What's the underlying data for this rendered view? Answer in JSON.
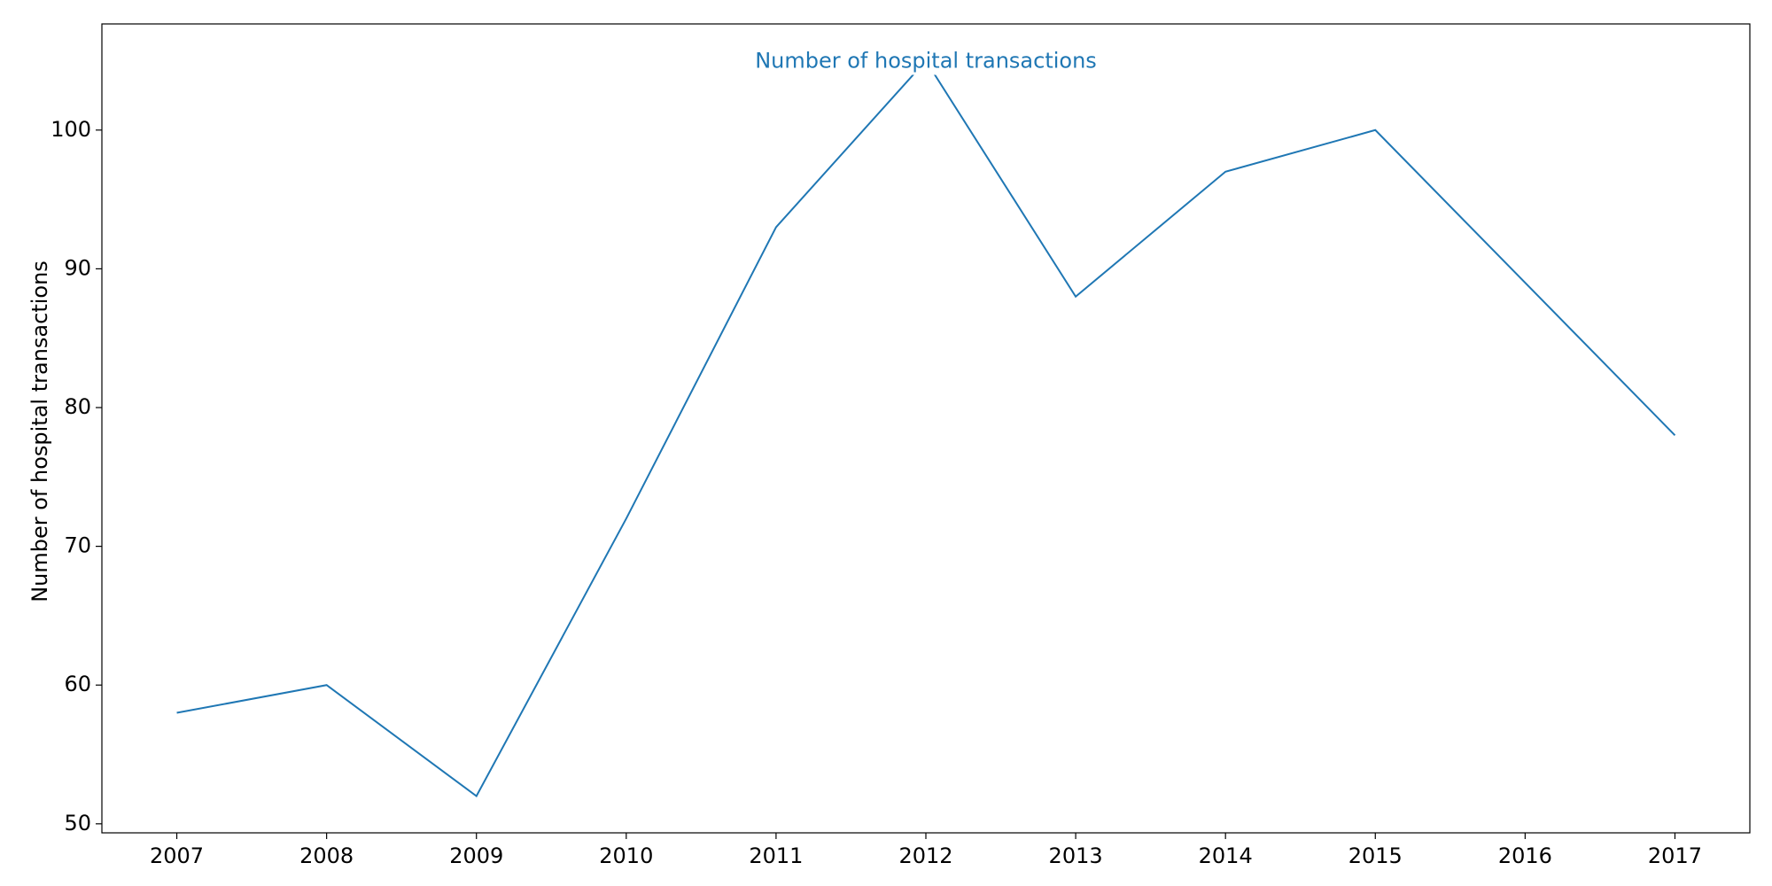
{
  "chart_data": {
    "type": "line",
    "x": [
      2007,
      2008,
      2009,
      2010,
      2011,
      2012,
      2013,
      2014,
      2015,
      2016,
      2017
    ],
    "series": [
      {
        "values": [
          58,
          60,
          52,
          72,
          93,
          105,
          88,
          97,
          100,
          89,
          78
        ],
        "color": "#1f77b4"
      }
    ],
    "annotation": {
      "text": "Number of hospital transactions",
      "x": 2012,
      "y": 105
    },
    "xlabel": "",
    "ylabel": "Number of hospital transactions",
    "xticks": [
      "2007",
      "2008",
      "2009",
      "2010",
      "2011",
      "2012",
      "2013",
      "2014",
      "2015",
      "2016",
      "2017"
    ],
    "yticks": [
      50,
      60,
      70,
      80,
      90,
      100
    ],
    "xlim": [
      2006.5,
      2017.5
    ],
    "ylim": [
      49.35,
      107.65
    ],
    "grid": false,
    "legend": "none"
  }
}
